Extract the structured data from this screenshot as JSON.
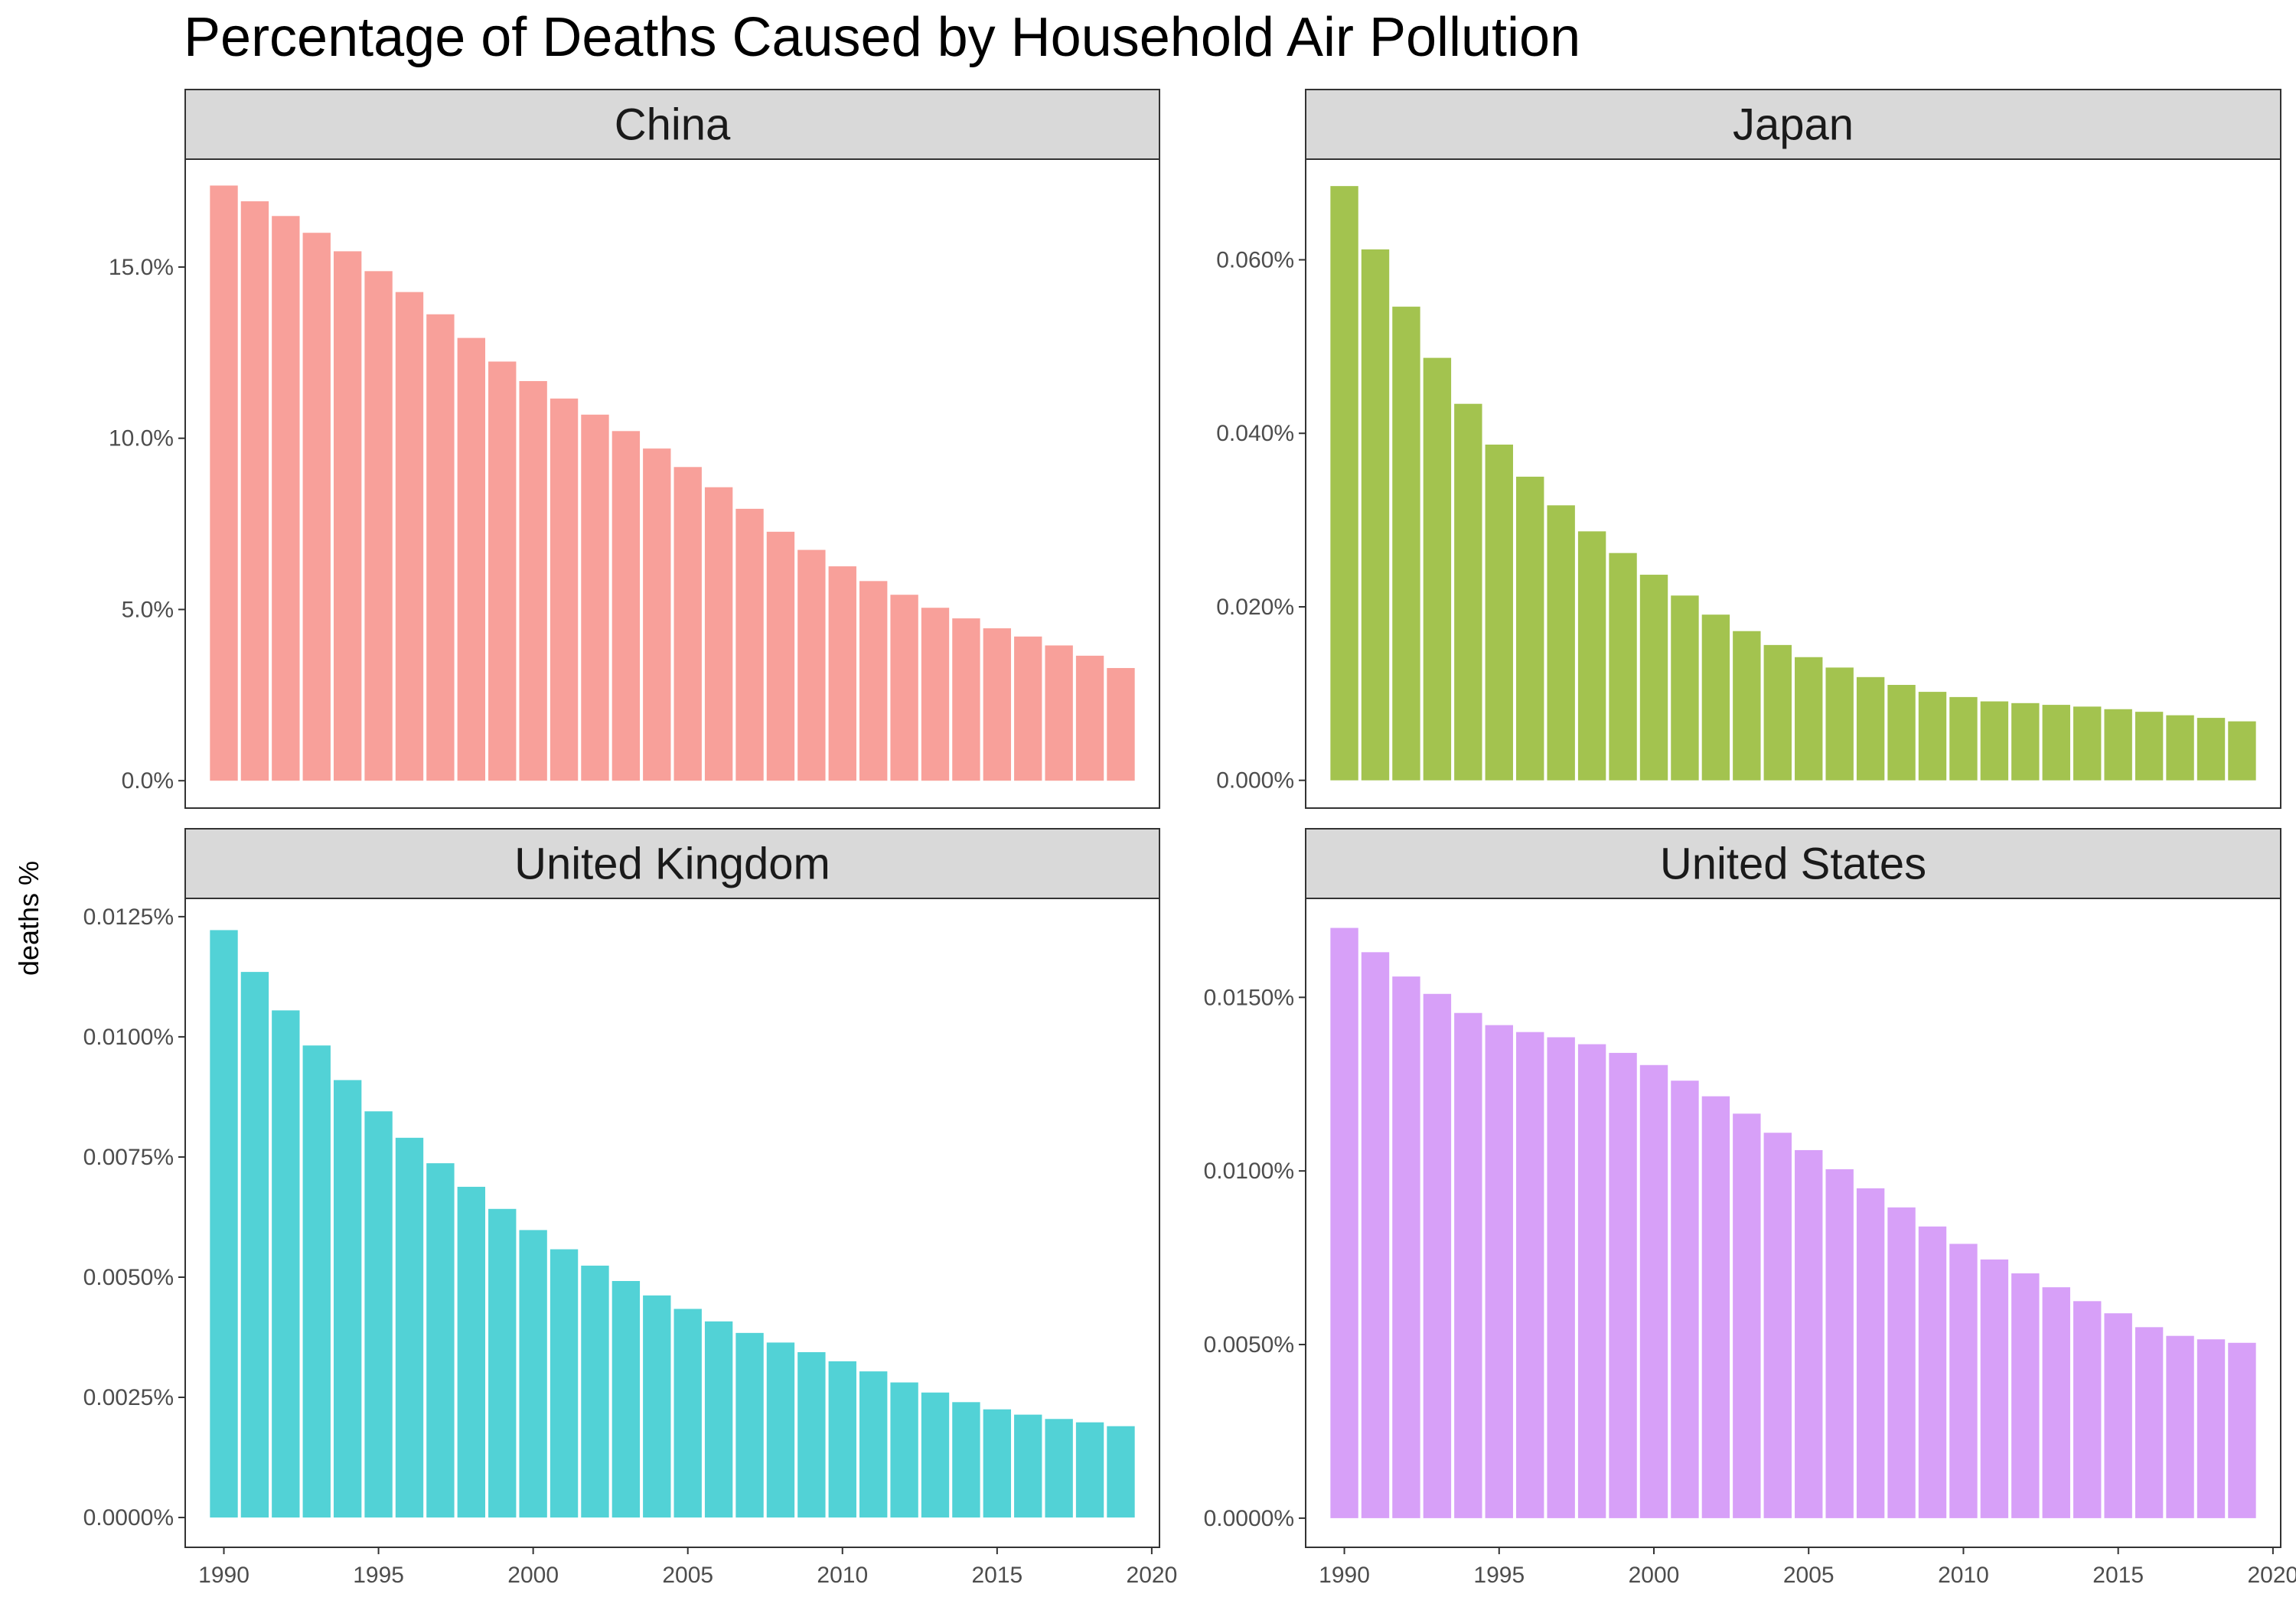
{
  "chart_data": {
    "type": "bar",
    "title": "Percentage of Deaths Caused by Household Air Pollution",
    "ylabel": "deaths %",
    "xlabel": "",
    "layout": "facet_wrap 2x2",
    "grid": false,
    "x_ticks": [
      "1990",
      "1995",
      "2000",
      "2005",
      "2010",
      "2015",
      "2020"
    ],
    "x_tick_values": [
      1990,
      1995,
      2000,
      2005,
      2010,
      2015,
      2020
    ],
    "xlim": [
      1988.75,
      2020.25
    ],
    "years": [
      1990,
      1991,
      1992,
      1993,
      1994,
      1995,
      1996,
      1997,
      1998,
      1999,
      2000,
      2001,
      2002,
      2003,
      2004,
      2005,
      2006,
      2007,
      2008,
      2009,
      2010,
      2011,
      2012,
      2013,
      2014,
      2015,
      2016,
      2017,
      2018,
      2019
    ],
    "facets": [
      {
        "name": "China",
        "color": "#F8A09A",
        "ylim": [
          -0.8,
          18.15
        ],
        "y_ticks": [
          "0.0%",
          "5.0%",
          "10.0%",
          "15.0%"
        ],
        "y_tick_values": [
          0,
          5,
          10,
          15
        ],
        "values": [
          17.38,
          16.92,
          16.49,
          16.0,
          15.46,
          14.88,
          14.27,
          13.62,
          12.93,
          12.24,
          11.67,
          11.16,
          10.69,
          10.21,
          9.7,
          9.16,
          8.57,
          7.94,
          7.27,
          6.74,
          6.26,
          5.83,
          5.43,
          5.05,
          4.74,
          4.45,
          4.21,
          3.95,
          3.65,
          3.29
        ]
      },
      {
        "name": "Japan",
        "color": "#A3C34F",
        "ylim": [
          -0.0032,
          0.0716
        ],
        "y_ticks": [
          "0.000%",
          "0.020%",
          "0.040%",
          "0.060%"
        ],
        "y_tick_values": [
          0,
          0.02,
          0.04,
          0.06
        ],
        "values": [
          0.0685,
          0.0612,
          0.0546,
          0.0487,
          0.0434,
          0.0387,
          0.035,
          0.0317,
          0.0287,
          0.0262,
          0.0237,
          0.0213,
          0.0191,
          0.0172,
          0.0156,
          0.0142,
          0.013,
          0.0119,
          0.011,
          0.0102,
          0.0096,
          0.0091,
          0.0089,
          0.0087,
          0.0085,
          0.0082,
          0.0079,
          0.0075,
          0.0072,
          0.0068
        ]
      },
      {
        "name": "United Kingdom",
        "color": "#52D2D6",
        "ylim": [
          -0.00062,
          0.01288
        ],
        "y_ticks": [
          "0.0000%",
          "0.0025%",
          "0.0050%",
          "0.0075%",
          "0.0100%",
          "0.0125%"
        ],
        "y_tick_values": [
          0,
          0.0025,
          0.005,
          0.0075,
          0.01,
          0.0125
        ],
        "values": [
          0.01222,
          0.01135,
          0.01055,
          0.00982,
          0.0091,
          0.00845,
          0.0079,
          0.00737,
          0.00688,
          0.00642,
          0.00598,
          0.00558,
          0.00524,
          0.00492,
          0.00462,
          0.00434,
          0.00408,
          0.00384,
          0.00364,
          0.00344,
          0.00325,
          0.00304,
          0.00281,
          0.0026,
          0.0024,
          0.00225,
          0.00214,
          0.00205,
          0.00198,
          0.0019
        ]
      },
      {
        "name": "United States",
        "color": "#D7A0F8",
        "ylim": [
          -0.00084,
          0.01785
        ],
        "y_ticks": [
          "0.0000%",
          "0.0050%",
          "0.0100%",
          "0.0150%"
        ],
        "y_tick_values": [
          0,
          0.005,
          0.01,
          0.015
        ],
        "values": [
          0.017,
          0.0163,
          0.0156,
          0.0151,
          0.01455,
          0.0142,
          0.014,
          0.01385,
          0.01365,
          0.0134,
          0.01305,
          0.0126,
          0.01215,
          0.01165,
          0.0111,
          0.0106,
          0.01005,
          0.0095,
          0.00895,
          0.0084,
          0.0079,
          0.00745,
          0.00705,
          0.00665,
          0.00625,
          0.0059,
          0.0055,
          0.00525,
          0.00515,
          0.00505
        ]
      }
    ]
  }
}
